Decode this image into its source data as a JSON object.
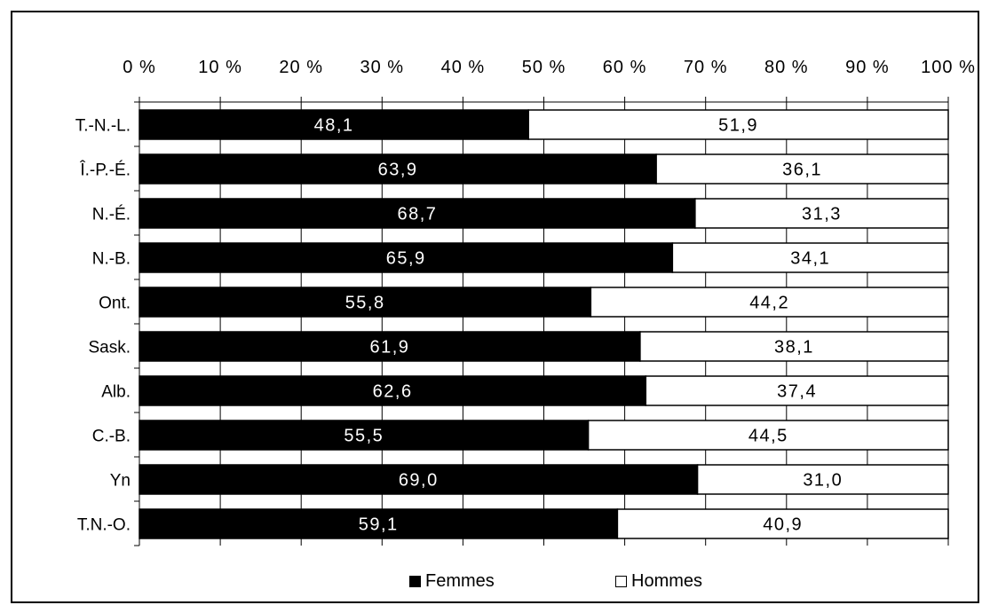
{
  "chart_data": {
    "type": "bar",
    "orientation": "horizontal",
    "stacked": true,
    "percent_stacked": true,
    "categories": [
      "T.-N.-L.",
      "Î.-P.-É.",
      "N.-É.",
      "N.-B.",
      "Ont.",
      "Sask.",
      "Alb.",
      "C.-B.",
      "Yn",
      "T.N.-O."
    ],
    "series": [
      {
        "name": "Femmes",
        "color": "#000000",
        "label_color": "#ffffff",
        "values": [
          48.1,
          63.9,
          68.7,
          65.9,
          55.8,
          61.9,
          62.6,
          55.5,
          69.0,
          59.1
        ],
        "data_labels": [
          "48,1",
          "63,9",
          "68,7",
          "65,9",
          "55,8",
          "61,9",
          "62,6",
          "55,5",
          "69,0",
          "59,1"
        ]
      },
      {
        "name": "Hommes",
        "color": "#ffffff",
        "label_color": "#000000",
        "values": [
          51.9,
          36.1,
          31.3,
          34.1,
          44.2,
          38.1,
          37.4,
          44.5,
          31.0,
          40.9
        ],
        "data_labels": [
          "51,9",
          "36,1",
          "31,3",
          "34,1",
          "44,2",
          "38,1",
          "37,4",
          "44,5",
          "31,0",
          "40,9"
        ]
      }
    ],
    "x_ticks": [
      0,
      10,
      20,
      30,
      40,
      50,
      60,
      70,
      80,
      90,
      100
    ],
    "x_tick_labels": [
      "0 %",
      "10 %",
      "20 %",
      "30 %",
      "40 %",
      "50 %",
      "60 %",
      "70 %",
      "80 %",
      "90 %",
      "100 %"
    ],
    "xlim": [
      0,
      100
    ],
    "x_axis_position": "top",
    "grid": false,
    "legend_position": "bottom",
    "title": "",
    "xlabel": "",
    "ylabel": ""
  }
}
